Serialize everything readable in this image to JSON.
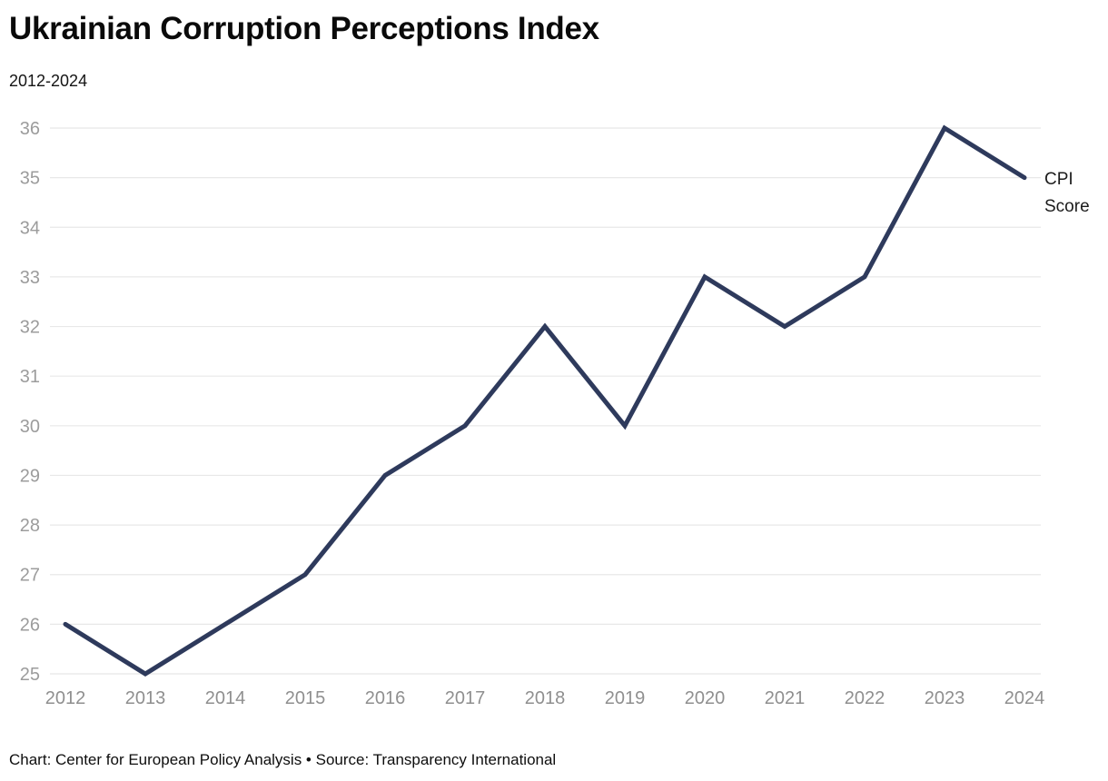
{
  "header": {
    "title": "Ukrainian Corruption Perceptions Index",
    "subtitle": "2012-2024"
  },
  "chart_data": {
    "type": "line",
    "title": "Ukrainian Corruption Perceptions Index",
    "subtitle": "2012-2024",
    "x": [
      2012,
      2013,
      2014,
      2015,
      2016,
      2017,
      2018,
      2019,
      2020,
      2021,
      2022,
      2023,
      2024
    ],
    "series": [
      {
        "name": "CPI Score",
        "values": [
          26,
          25,
          26,
          27,
          29,
          30,
          32,
          30,
          33,
          32,
          33,
          36,
          35
        ]
      }
    ],
    "end_label_lines": [
      "CPI",
      "Score"
    ],
    "xlabel": "",
    "ylabel": "",
    "ylim": [
      25,
      36
    ],
    "yticks": [
      25,
      26,
      27,
      28,
      29,
      30,
      31,
      32,
      33,
      34,
      35,
      36
    ],
    "grid": "horizontal",
    "legend_position": "end-of-line",
    "line_color": "#2e3a5c",
    "gridline_color": "#e8e8e8",
    "ytick_color": "#9c9c9c",
    "xtick_color": "#8f8f8f"
  },
  "footer": {
    "text": "Chart: Center for European Policy Analysis • Source: Transparency International"
  }
}
